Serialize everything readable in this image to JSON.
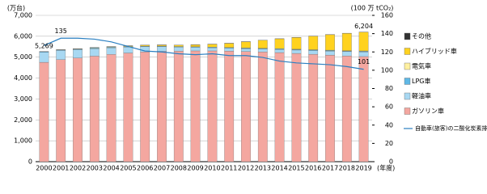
{
  "chart_data": {
    "type": "bar",
    "categories": [
      "2000",
      "2001",
      "2002",
      "2003",
      "2004",
      "2005",
      "2006",
      "2007",
      "2008",
      "2009",
      "2010",
      "2011",
      "2012",
      "2013",
      "2014",
      "2015",
      "2016",
      "2017",
      "2018",
      "2019"
    ],
    "y_label": "(万台)",
    "y2_label": "(100 万 tCO₂)",
    "x_label": "(年度)",
    "ylim": [
      0,
      7000
    ],
    "yticks": [
      0,
      {
        "value": 1000,
        "label": "1,000"
      },
      {
        "value": 2000,
        "label": "2,000"
      },
      {
        "value": 3000,
        "label": "3,000"
      },
      {
        "value": 4000,
        "label": "4,000"
      },
      {
        "value": 5000,
        "label": "5,000"
      },
      {
        "value": 6000,
        "label": "6,000"
      },
      {
        "value": 7000,
        "label": "7,000"
      }
    ],
    "y2lim": [
      0,
      160
    ],
    "y2ticks": [
      0,
      20,
      40,
      60,
      80,
      100,
      120,
      140,
      160
    ],
    "grid": true,
    "series": [
      {
        "name": "ガソリン車",
        "color": "#f4a7a0",
        "values": [
          4754,
          4880,
          4960,
          5050,
          5130,
          5200,
          5250,
          5280,
          5290,
          5300,
          5300,
          5290,
          5270,
          5250,
          5220,
          5180,
          5140,
          5100,
          5060,
          5030
        ]
      },
      {
        "name": "軽油車",
        "color": "#a8d8f2",
        "values": [
          480,
          440,
          400,
          360,
          320,
          280,
          250,
          220,
          190,
          170,
          150,
          140,
          135,
          140,
          150,
          160,
          175,
          190,
          205,
          220
        ]
      },
      {
        "name": "LPG車",
        "color": "#5fb8e6",
        "values": [
          30,
          30,
          30,
          30,
          30,
          30,
          30,
          30,
          30,
          30,
          30,
          30,
          30,
          30,
          30,
          30,
          30,
          30,
          30,
          30
        ]
      },
      {
        "name": "電気車",
        "color": "#fff0a0",
        "values": [
          0,
          0,
          0,
          0,
          0,
          0,
          0,
          0,
          0,
          1,
          2,
          3,
          5,
          7,
          9,
          11,
          13,
          15,
          17,
          19
        ]
      },
      {
        "name": "ハイブリッド車",
        "color": "#ffd21f",
        "values": [
          0,
          5,
          10,
          15,
          25,
          35,
          45,
          55,
          65,
          90,
          140,
          200,
          300,
          380,
          470,
          560,
          650,
          740,
          830,
          900
        ]
      },
      {
        "name": "その他",
        "color": "#333333",
        "values": [
          5,
          5,
          5,
          5,
          5,
          5,
          5,
          5,
          5,
          5,
          5,
          5,
          5,
          5,
          5,
          5,
          5,
          5,
          5,
          5
        ]
      },
      {
        "name": "自動車(旅客)の二酸化炭素排出量",
        "type": "line",
        "axis": "y2",
        "color": "#2a7fc1",
        "values": [
          127,
          135,
          135,
          134,
          131,
          126,
          121,
          120,
          118,
          117,
          118,
          116,
          116,
          114,
          110,
          108,
          107,
          106,
          104,
          101
        ],
        "value_labels": [
          null,
          "135",
          null,
          null,
          null,
          null,
          null,
          null,
          null,
          null,
          null,
          null,
          null,
          null,
          null,
          null,
          null,
          null,
          null,
          "101"
        ]
      }
    ],
    "annotations": [
      {
        "label": "5,269",
        "value": 5269,
        "category": "2000"
      },
      {
        "label": "6,204",
        "value": 6204,
        "category": "2019"
      }
    ]
  }
}
